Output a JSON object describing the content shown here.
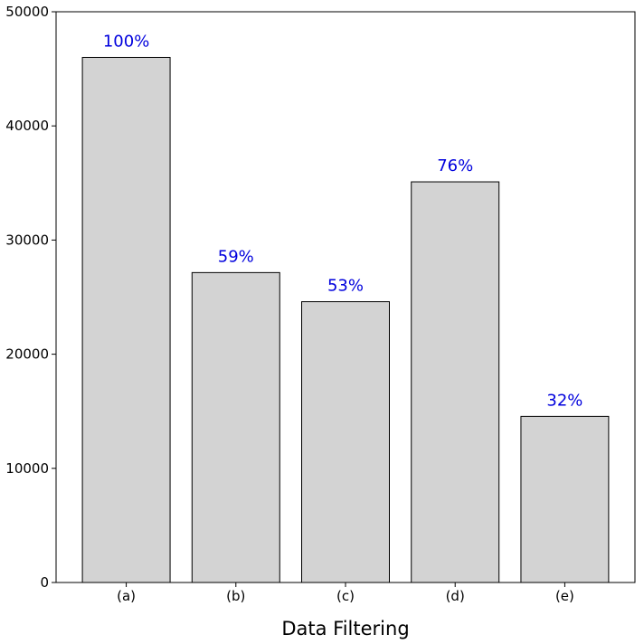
{
  "chart_data": {
    "type": "bar",
    "categories": [
      "(a)",
      "(b)",
      "(c)",
      "(d)",
      "(e)"
    ],
    "values": [
      46000,
      27150,
      24600,
      35100,
      14550
    ],
    "data_labels": [
      "100%",
      "59%",
      "53%",
      "76%",
      "32%"
    ],
    "title": "",
    "xlabel": "Data Filtering",
    "ylabel": "",
    "ylim": [
      0,
      50000
    ],
    "yticks": [
      0,
      10000,
      20000,
      30000,
      40000,
      50000
    ],
    "grid": false,
    "legend": "none"
  },
  "colors": {
    "bar_fill": "#d3d3d3",
    "bar_edge": "#000000",
    "data_label": "#0000dd",
    "axis": "#000000"
  }
}
